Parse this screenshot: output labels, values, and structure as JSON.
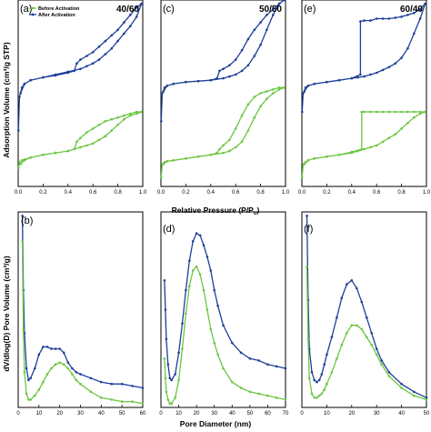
{
  "colors": {
    "before": "#6cc644",
    "after": "#1f3f99"
  },
  "legend": {
    "before": "Before Activation",
    "after": "After Activation"
  },
  "axis_titles": {
    "top_x": "Relative Pressure (P/P",
    "top_x_sub": "o",
    "top_x_close": ")",
    "bottom_x": "Pore Diameter (nm)",
    "top_y": "Adsorption Volume (cm³/g STP)",
    "bottom_y": "dV/dlog(D) Pore Volume (cm³/g)"
  },
  "chart_data": [
    {
      "type": "line",
      "label": "(a)",
      "ratio": "40/60",
      "xlim": [
        0,
        1
      ],
      "ylim": [
        0,
        1
      ],
      "xticks": [
        "0.0",
        "0.2",
        "0.4",
        "0.6",
        "0.8",
        "1.0"
      ],
      "series": [
        {
          "name": "After Activation",
          "x": [
            0.002,
            0.01,
            0.03,
            0.05,
            0.1,
            0.2,
            0.3,
            0.4,
            0.5,
            0.55,
            0.6,
            0.65,
            0.7,
            0.75,
            0.8,
            0.85,
            0.9,
            0.95,
            0.99,
            0.95,
            0.9,
            0.85,
            0.8,
            0.75,
            0.7,
            0.65,
            0.6,
            0.55,
            0.5,
            0.47,
            0.45,
            0.4,
            0.3,
            0.2,
            0.1,
            0.05,
            0.02
          ],
          "y": [
            0.3,
            0.48,
            0.53,
            0.55,
            0.57,
            0.585,
            0.6,
            0.615,
            0.63,
            0.645,
            0.66,
            0.68,
            0.71,
            0.74,
            0.78,
            0.82,
            0.86,
            0.91,
            0.98,
            0.96,
            0.92,
            0.88,
            0.84,
            0.81,
            0.78,
            0.75,
            0.72,
            0.7,
            0.68,
            0.66,
            0.62,
            0.61,
            0.595,
            0.585,
            0.57,
            0.55,
            0.5
          ]
        },
        {
          "name": "Before Activation",
          "x": [
            0.002,
            0.01,
            0.03,
            0.05,
            0.1,
            0.2,
            0.3,
            0.4,
            0.5,
            0.55,
            0.6,
            0.65,
            0.7,
            0.75,
            0.8,
            0.85,
            0.9,
            0.95,
            0.99,
            0.95,
            0.9,
            0.85,
            0.8,
            0.75,
            0.7,
            0.65,
            0.6,
            0.55,
            0.5,
            0.47,
            0.45,
            0.4,
            0.3,
            0.2,
            0.1,
            0.05,
            0.02
          ],
          "y": [
            0.1,
            0.13,
            0.14,
            0.145,
            0.155,
            0.17,
            0.18,
            0.19,
            0.21,
            0.22,
            0.23,
            0.25,
            0.27,
            0.3,
            0.33,
            0.36,
            0.38,
            0.39,
            0.4,
            0.4,
            0.39,
            0.38,
            0.37,
            0.36,
            0.35,
            0.33,
            0.31,
            0.29,
            0.26,
            0.24,
            0.2,
            0.19,
            0.18,
            0.17,
            0.155,
            0.14,
            0.12
          ]
        }
      ]
    },
    {
      "type": "line",
      "label": "(c)",
      "ratio": "50/50",
      "xlim": [
        0,
        1
      ],
      "ylim": [
        0,
        1
      ],
      "xticks": [
        "0.0",
        "0.2",
        "0.4",
        "0.6",
        "0.8",
        "1.0"
      ],
      "series": [
        {
          "name": "After Activation",
          "x": [
            0.002,
            0.01,
            0.03,
            0.05,
            0.1,
            0.2,
            0.3,
            0.4,
            0.5,
            0.55,
            0.6,
            0.65,
            0.7,
            0.75,
            0.8,
            0.85,
            0.9,
            0.95,
            0.99,
            0.95,
            0.9,
            0.85,
            0.8,
            0.75,
            0.7,
            0.65,
            0.6,
            0.55,
            0.5,
            0.47,
            0.45,
            0.4,
            0.3,
            0.2,
            0.1,
            0.05,
            0.02
          ],
          "y": [
            0.35,
            0.5,
            0.53,
            0.54,
            0.55,
            0.56,
            0.565,
            0.57,
            0.58,
            0.59,
            0.6,
            0.62,
            0.65,
            0.7,
            0.76,
            0.84,
            0.92,
            0.98,
            1.0,
            0.98,
            0.95,
            0.92,
            0.88,
            0.84,
            0.79,
            0.73,
            0.68,
            0.65,
            0.63,
            0.62,
            0.58,
            0.57,
            0.565,
            0.56,
            0.55,
            0.54,
            0.51
          ]
        },
        {
          "name": "Before Activation",
          "x": [
            0.002,
            0.01,
            0.03,
            0.05,
            0.1,
            0.2,
            0.3,
            0.4,
            0.5,
            0.55,
            0.6,
            0.65,
            0.7,
            0.75,
            0.8,
            0.85,
            0.9,
            0.95,
            0.99,
            0.95,
            0.9,
            0.85,
            0.8,
            0.75,
            0.7,
            0.65,
            0.6,
            0.55,
            0.5,
            0.47,
            0.45,
            0.4,
            0.3,
            0.2,
            0.1,
            0.05,
            0.02
          ],
          "y": [
            0.05,
            0.12,
            0.13,
            0.135,
            0.14,
            0.15,
            0.16,
            0.17,
            0.18,
            0.19,
            0.21,
            0.24,
            0.3,
            0.37,
            0.43,
            0.47,
            0.5,
            0.52,
            0.53,
            0.53,
            0.52,
            0.51,
            0.5,
            0.48,
            0.44,
            0.38,
            0.31,
            0.25,
            0.22,
            0.2,
            0.18,
            0.17,
            0.16,
            0.15,
            0.14,
            0.135,
            0.12
          ]
        }
      ]
    },
    {
      "type": "line",
      "label": "(e)",
      "ratio": "60/40",
      "xlim": [
        0,
        1
      ],
      "ylim": [
        0,
        1
      ],
      "xticks": [
        "0.0",
        "0.2",
        "0.4",
        "0.6",
        "0.8",
        "1.0"
      ],
      "series": [
        {
          "name": "After Activation",
          "x": [
            0.002,
            0.01,
            0.03,
            0.05,
            0.1,
            0.2,
            0.3,
            0.4,
            0.45,
            0.5,
            0.55,
            0.6,
            0.65,
            0.7,
            0.75,
            0.8,
            0.85,
            0.9,
            0.95,
            0.99,
            0.95,
            0.9,
            0.85,
            0.8,
            0.75,
            0.7,
            0.65,
            0.6,
            0.55,
            0.5,
            0.47,
            0.47,
            0.4,
            0.3,
            0.2,
            0.1,
            0.05,
            0.02
          ],
          "y": [
            0.4,
            0.5,
            0.53,
            0.54,
            0.55,
            0.56,
            0.57,
            0.58,
            0.585,
            0.59,
            0.6,
            0.61,
            0.625,
            0.64,
            0.66,
            0.69,
            0.74,
            0.82,
            0.9,
            0.98,
            0.95,
            0.93,
            0.92,
            0.91,
            0.905,
            0.9,
            0.9,
            0.9,
            0.89,
            0.89,
            0.885,
            0.6,
            0.58,
            0.57,
            0.56,
            0.55,
            0.54,
            0.51
          ]
        },
        {
          "name": "Before Activation",
          "x": [
            0.002,
            0.01,
            0.03,
            0.05,
            0.1,
            0.2,
            0.3,
            0.4,
            0.45,
            0.5,
            0.55,
            0.6,
            0.65,
            0.7,
            0.75,
            0.8,
            0.85,
            0.9,
            0.95,
            0.99,
            0.95,
            0.9,
            0.85,
            0.8,
            0.75,
            0.7,
            0.65,
            0.6,
            0.55,
            0.5,
            0.48,
            0.48,
            0.4,
            0.3,
            0.2,
            0.1,
            0.05,
            0.02
          ],
          "y": [
            0.05,
            0.12,
            0.13,
            0.14,
            0.15,
            0.16,
            0.17,
            0.18,
            0.19,
            0.2,
            0.21,
            0.22,
            0.24,
            0.26,
            0.28,
            0.31,
            0.34,
            0.37,
            0.39,
            0.4,
            0.4,
            0.4,
            0.4,
            0.4,
            0.4,
            0.4,
            0.4,
            0.4,
            0.4,
            0.4,
            0.4,
            0.2,
            0.185,
            0.17,
            0.16,
            0.15,
            0.14,
            0.12
          ]
        }
      ]
    },
    {
      "type": "line",
      "label": "(b)",
      "ratio": "",
      "xlim": [
        0,
        60
      ],
      "ylim": [
        0,
        1
      ],
      "xticks": [
        "0",
        "10",
        "20",
        "30",
        "40",
        "50",
        "60"
      ],
      "series": [
        {
          "name": "After Activation",
          "x": [
            2,
            2.5,
            3,
            4,
            5,
            6,
            8,
            10,
            12,
            14,
            16,
            18,
            20,
            22,
            24,
            26,
            28,
            30,
            35,
            40,
            45,
            50,
            55,
            60
          ],
          "y": [
            0.98,
            0.6,
            0.38,
            0.2,
            0.14,
            0.15,
            0.2,
            0.27,
            0.31,
            0.31,
            0.3,
            0.3,
            0.3,
            0.28,
            0.23,
            0.2,
            0.18,
            0.17,
            0.15,
            0.13,
            0.12,
            0.12,
            0.11,
            0.1
          ]
        },
        {
          "name": "Before Activation",
          "x": [
            2,
            2.5,
            3,
            4,
            5,
            6,
            8,
            10,
            12,
            14,
            16,
            18,
            20,
            22,
            24,
            26,
            28,
            30,
            35,
            40,
            45,
            50,
            55,
            60
          ],
          "y": [
            0.85,
            0.4,
            0.18,
            0.07,
            0.04,
            0.04,
            0.06,
            0.09,
            0.13,
            0.17,
            0.2,
            0.22,
            0.23,
            0.22,
            0.2,
            0.17,
            0.14,
            0.12,
            0.08,
            0.05,
            0.04,
            0.03,
            0.03,
            0.02
          ]
        }
      ]
    },
    {
      "type": "line",
      "label": "(d)",
      "ratio": "",
      "xlim": [
        0,
        70
      ],
      "ylim": [
        0,
        1
      ],
      "xticks": [
        "0",
        "10",
        "20",
        "30",
        "40",
        "50",
        "60",
        "70"
      ],
      "series": [
        {
          "name": "After Activation",
          "x": [
            2,
            2.5,
            3,
            4,
            5,
            6,
            8,
            10,
            12,
            14,
            16,
            18,
            20,
            22,
            24,
            26,
            28,
            30,
            32,
            35,
            40,
            45,
            50,
            55,
            60,
            65,
            70
          ],
          "y": [
            0.65,
            0.5,
            0.35,
            0.22,
            0.15,
            0.14,
            0.17,
            0.28,
            0.43,
            0.6,
            0.75,
            0.85,
            0.89,
            0.88,
            0.83,
            0.77,
            0.7,
            0.6,
            0.52,
            0.42,
            0.33,
            0.28,
            0.25,
            0.24,
            0.22,
            0.21,
            0.2
          ]
        },
        {
          "name": "Before Activation",
          "x": [
            2,
            2.5,
            3,
            4,
            5,
            6,
            8,
            10,
            12,
            14,
            16,
            18,
            20,
            22,
            24,
            26,
            28,
            30,
            32,
            35,
            40,
            45,
            50,
            55,
            60,
            65,
            70
          ],
          "y": [
            0.25,
            0.15,
            0.08,
            0.04,
            0.02,
            0.02,
            0.05,
            0.14,
            0.3,
            0.48,
            0.62,
            0.7,
            0.72,
            0.68,
            0.6,
            0.5,
            0.4,
            0.33,
            0.27,
            0.2,
            0.13,
            0.1,
            0.08,
            0.07,
            0.06,
            0.05,
            0.04
          ]
        }
      ]
    },
    {
      "type": "line",
      "label": "(f)",
      "ratio": "",
      "xlim": [
        0,
        50
      ],
      "ylim": [
        0,
        1
      ],
      "xticks": [
        "0",
        "10",
        "20",
        "30",
        "40",
        "50"
      ],
      "series": [
        {
          "name": "After Activation",
          "x": [
            2,
            2.5,
            3,
            4,
            5,
            6,
            7,
            8,
            9,
            10,
            12,
            14,
            16,
            18,
            20,
            22,
            24,
            26,
            28,
            30,
            32,
            35,
            40,
            45,
            50
          ],
          "y": [
            0.98,
            0.55,
            0.3,
            0.18,
            0.14,
            0.13,
            0.14,
            0.17,
            0.22,
            0.27,
            0.36,
            0.46,
            0.56,
            0.63,
            0.65,
            0.61,
            0.54,
            0.46,
            0.38,
            0.3,
            0.24,
            0.18,
            0.12,
            0.08,
            0.05
          ]
        },
        {
          "name": "Before Activation",
          "x": [
            2,
            2.5,
            3,
            4,
            5,
            6,
            7,
            8,
            9,
            10,
            12,
            14,
            16,
            18,
            20,
            22,
            24,
            26,
            28,
            30,
            32,
            35,
            40,
            45,
            50
          ],
          "y": [
            0.72,
            0.35,
            0.15,
            0.07,
            0.05,
            0.05,
            0.06,
            0.07,
            0.09,
            0.12,
            0.18,
            0.25,
            0.32,
            0.38,
            0.42,
            0.42,
            0.4,
            0.36,
            0.32,
            0.27,
            0.22,
            0.16,
            0.1,
            0.06,
            0.04
          ]
        }
      ]
    }
  ]
}
